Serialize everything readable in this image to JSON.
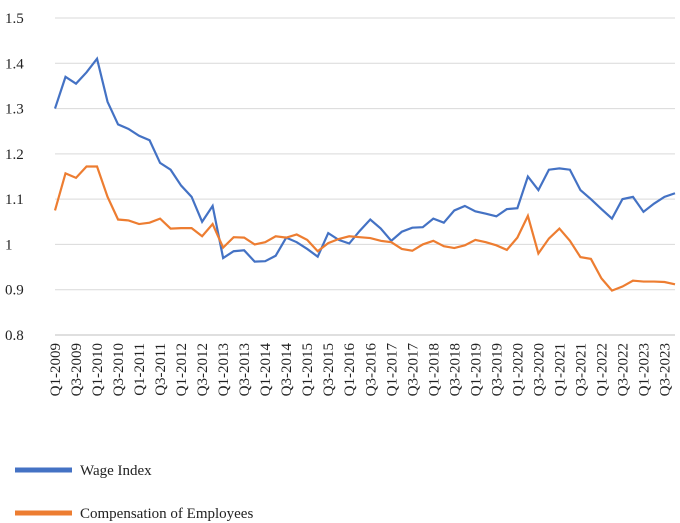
{
  "chart_data": {
    "type": "line",
    "categories": [
      "Q1-2009",
      null,
      "Q3-2009",
      null,
      "Q1-2010",
      null,
      "Q3-2010",
      null,
      "Q1-2011",
      null,
      "Q3-2011",
      null,
      "Q1-2012",
      null,
      "Q3-2012",
      null,
      "Q1-2013",
      null,
      "Q3-2013",
      null,
      "Q1-2014",
      null,
      "Q3-2014",
      null,
      "Q1-2015",
      null,
      "Q3-2015",
      null,
      "Q1-2016",
      null,
      "Q3-2016",
      null,
      "Q1-2017",
      null,
      "Q3-2017",
      null,
      "Q1-2018",
      null,
      "Q3-2018",
      null,
      "Q1-2019",
      null,
      "Q3-2019",
      null,
      "Q1-2020",
      null,
      "Q3-2020",
      null,
      "Q1-2021",
      null,
      "Q3-2021",
      null,
      "Q1-2022",
      null,
      "Q3-2022",
      null,
      "Q1-2023",
      null,
      "Q3-2023",
      null
    ],
    "series": [
      {
        "name": "Wage Index",
        "color": "#4472c4",
        "values": [
          1.3,
          1.37,
          1.355,
          1.38,
          1.41,
          1.315,
          1.265,
          1.255,
          1.24,
          1.23,
          1.18,
          1.165,
          1.13,
          1.105,
          1.05,
          1.085,
          0.97,
          0.985,
          0.987,
          0.962,
          0.963,
          0.975,
          1.015,
          1.005,
          0.99,
          0.973,
          1.025,
          1.01,
          1.002,
          1.03,
          1.055,
          1.035,
          1.008,
          1.028,
          1.037,
          1.038,
          1.057,
          1.048,
          1.075,
          1.085,
          1.073,
          1.068,
          1.062,
          1.078,
          1.08,
          1.15,
          1.12,
          1.165,
          1.168,
          1.165,
          1.12,
          1.1,
          1.078,
          1.057,
          1.1,
          1.105,
          1.072,
          1.09,
          1.105,
          1.113
        ]
      },
      {
        "name": "Compensation of Employees",
        "color": "#ed7d31",
        "values": [
          1.075,
          1.157,
          1.147,
          1.172,
          1.172,
          1.105,
          1.055,
          1.053,
          1.045,
          1.048,
          1.057,
          1.035,
          1.036,
          1.036,
          1.018,
          1.045,
          0.993,
          1.016,
          1.015,
          1.0,
          1.005,
          1.018,
          1.015,
          1.022,
          1.01,
          0.985,
          1.003,
          1.012,
          1.018,
          1.016,
          1.014,
          1.008,
          1.005,
          0.99,
          0.986,
          1.0,
          1.008,
          0.996,
          0.992,
          0.998,
          1.01,
          1.005,
          0.998,
          0.988,
          1.015,
          1.063,
          0.98,
          1.013,
          1.035,
          1.008,
          0.972,
          0.968,
          0.925,
          0.898,
          0.907,
          0.92,
          0.918,
          0.918,
          0.917,
          0.912
        ]
      }
    ],
    "ylim": [
      0.8,
      1.5
    ],
    "yticks": [
      0.8,
      0.9,
      1,
      1.1,
      1.2,
      1.3,
      1.4,
      1.5
    ],
    "grid": true,
    "legend": "bottom"
  }
}
